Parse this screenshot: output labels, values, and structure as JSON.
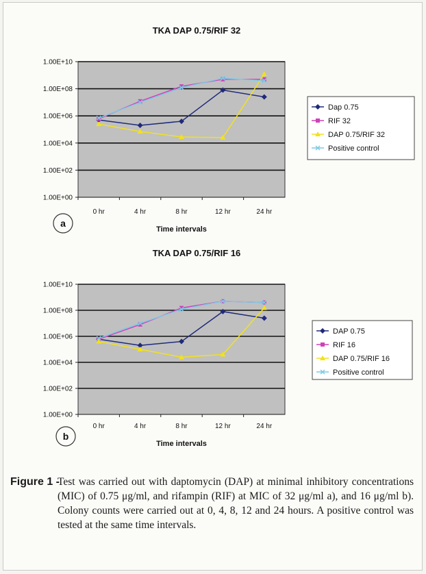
{
  "chart_data": [
    {
      "type": "line",
      "panel": "a",
      "title": "TKA DAP 0.75/RIF 32",
      "xlabel": "Time intervals",
      "ylabel": "",
      "yscale": "log",
      "ylim": [
        1,
        10000000000.0
      ],
      "yticks": [
        "1.00E+00",
        "1.00E+02",
        "1.00E+04",
        "1.00E+06",
        "1.00E+08",
        "1.00E+10"
      ],
      "categories": [
        "0 hr",
        "4 hr",
        "8 hr",
        "12 hr",
        "24 hr"
      ],
      "legend_position": "right",
      "grid": true,
      "series": [
        {
          "name": "Dap 0.75",
          "color": "#1f2a7a",
          "marker": "diamond",
          "values": [
            500000,
            200000,
            400000,
            80000000,
            25000000
          ]
        },
        {
          "name": "RIF 32",
          "color": "#d040b8",
          "marker": "square",
          "values": [
            600000,
            12000000,
            150000000,
            500000000,
            500000000
          ]
        },
        {
          "name": "DAP 0.75/RIF 32",
          "color": "#f2e21a",
          "marker": "triangle",
          "values": [
            250000,
            70000,
            28000,
            25000,
            1200000000
          ]
        },
        {
          "name": "Positive control",
          "color": "#7ec9e6",
          "marker": "x",
          "values": [
            700000,
            10000000,
            120000000,
            600000000,
            400000000
          ]
        }
      ]
    },
    {
      "type": "line",
      "panel": "b",
      "title": "TKA DAP 0.75/RIF 16",
      "xlabel": "Time intervals",
      "ylabel": "",
      "yscale": "log",
      "ylim": [
        1,
        10000000000.0
      ],
      "yticks": [
        "1.00E+00",
        "1.00E+02",
        "1.00E+04",
        "1.00E+06",
        "1.00E+08",
        "1.00E+10"
      ],
      "categories": [
        "0 hr",
        "4 hr",
        "8 hr",
        "12 hr",
        "24 hr"
      ],
      "legend_position": "right",
      "grid": true,
      "series": [
        {
          "name": "DAP 0.75",
          "color": "#1f2a7a",
          "marker": "diamond",
          "values": [
            600000,
            200000,
            400000,
            80000000,
            25000000
          ]
        },
        {
          "name": "RIF 16",
          "color": "#d040b8",
          "marker": "square",
          "values": [
            600000,
            8000000,
            150000000,
            500000000,
            400000000
          ]
        },
        {
          "name": "DAP 0.75/RIF 16",
          "color": "#f2e21a",
          "marker": "triangle",
          "values": [
            400000,
            100000,
            25000,
            40000,
            150000000
          ]
        },
        {
          "name": "Positive control",
          "color": "#7ec9e6",
          "marker": "x",
          "values": [
            700000,
            10000000,
            120000000,
            500000000,
            400000000
          ]
        }
      ]
    }
  ],
  "caption": {
    "label": "Figure 1 -",
    "text": "Test was carried out with daptomycin (DAP) at minimal inhibitory concentrations (MIC) of 0.75 μg/ml, and rifampin (RIF) at MIC of 32 μg/ml a), and 16 μg/ml b). Colony counts were carried out at 0, 4, 8, 12 and 24 hours. A positive control was tested at the same time intervals."
  },
  "colors": {
    "plot_background": "#c0c0c0",
    "gridline": "#111111"
  }
}
